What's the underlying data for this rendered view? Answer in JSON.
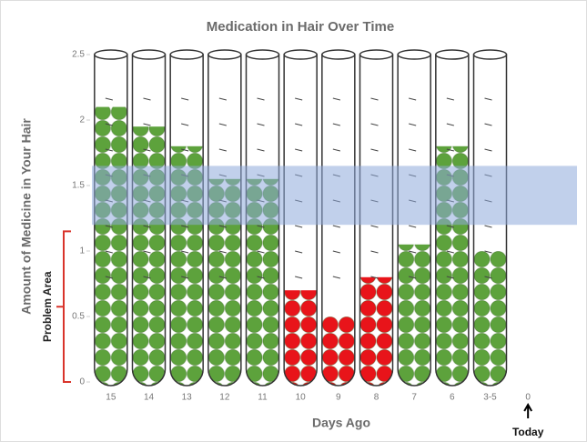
{
  "chart_data": {
    "type": "tubes",
    "title": "Medication in Hair Over Time",
    "x_label": "Days Ago",
    "y_label": "Amount of Medicine in Your Hair",
    "categories": [
      "15",
      "14",
      "13",
      "12",
      "11",
      "10",
      "9",
      "8",
      "7",
      "6",
      "3-5",
      "0"
    ],
    "values": [
      2.1,
      1.95,
      1.8,
      1.55,
      1.55,
      0.7,
      0.5,
      0.8,
      1.05,
      1.8,
      1.0,
      null
    ],
    "colors": [
      "#5da23c",
      "#5da23c",
      "#5da23c",
      "#5da23c",
      "#5da23c",
      "#e8141a",
      "#e8141a",
      "#e8141a",
      "#5da23c",
      "#5da23c",
      "#5da23c",
      null
    ],
    "ylim": [
      0,
      2.5
    ],
    "yticks": [
      0,
      0.5,
      1,
      1.5,
      2,
      2.5
    ],
    "band": [
      1.2,
      1.65
    ],
    "band_color": "#8eaadb",
    "problem_range": [
      0,
      1.15
    ],
    "problem_label": "Problem Area",
    "problem_color": "#d9342b",
    "annotation": "Today"
  }
}
